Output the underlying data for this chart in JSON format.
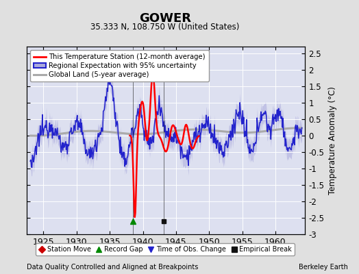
{
  "title": "GOWER",
  "subtitle": "35.333 N, 108.750 W (United States)",
  "ylabel": "Temperature Anomaly (°C)",
  "xlabel_left": "Data Quality Controlled and Aligned at Breakpoints",
  "xlabel_right": "Berkeley Earth",
  "ylim": [
    -3.0,
    2.7
  ],
  "yticks": [
    -3,
    -2.5,
    -2,
    -1.5,
    -1,
    -0.5,
    0,
    0.5,
    1,
    1.5,
    2,
    2.5
  ],
  "ytick_labels": [
    "-3",
    "-2.5",
    "-2",
    "-1.5",
    "-1",
    "-0.5",
    "0",
    "0.5",
    "1",
    "1.5",
    "2",
    "2.5"
  ],
  "xlim": [
    1922.5,
    1964.5
  ],
  "xticks": [
    1925,
    1930,
    1935,
    1940,
    1945,
    1950,
    1955,
    1960
  ],
  "bg_color": "#e0e0e0",
  "plot_bg_color": "#dde0f0",
  "grid_color": "#ffffff",
  "record_gap_x": 1938.5,
  "empirical_break_x": 1943.2,
  "red_line_color": "#ff0000",
  "blue_line_color": "#2222cc",
  "fill_color": "#aaaadd",
  "gray_line_color": "#aaaaaa",
  "legend_line1": "This Temperature Station (12-month average)",
  "legend_line2": "Regional Expectation with 95% uncertainty",
  "legend_line3": "Global Land (5-year average)",
  "marker_legend": [
    "Station Move",
    "Record Gap",
    "Time of Obs. Change",
    "Empirical Break"
  ]
}
